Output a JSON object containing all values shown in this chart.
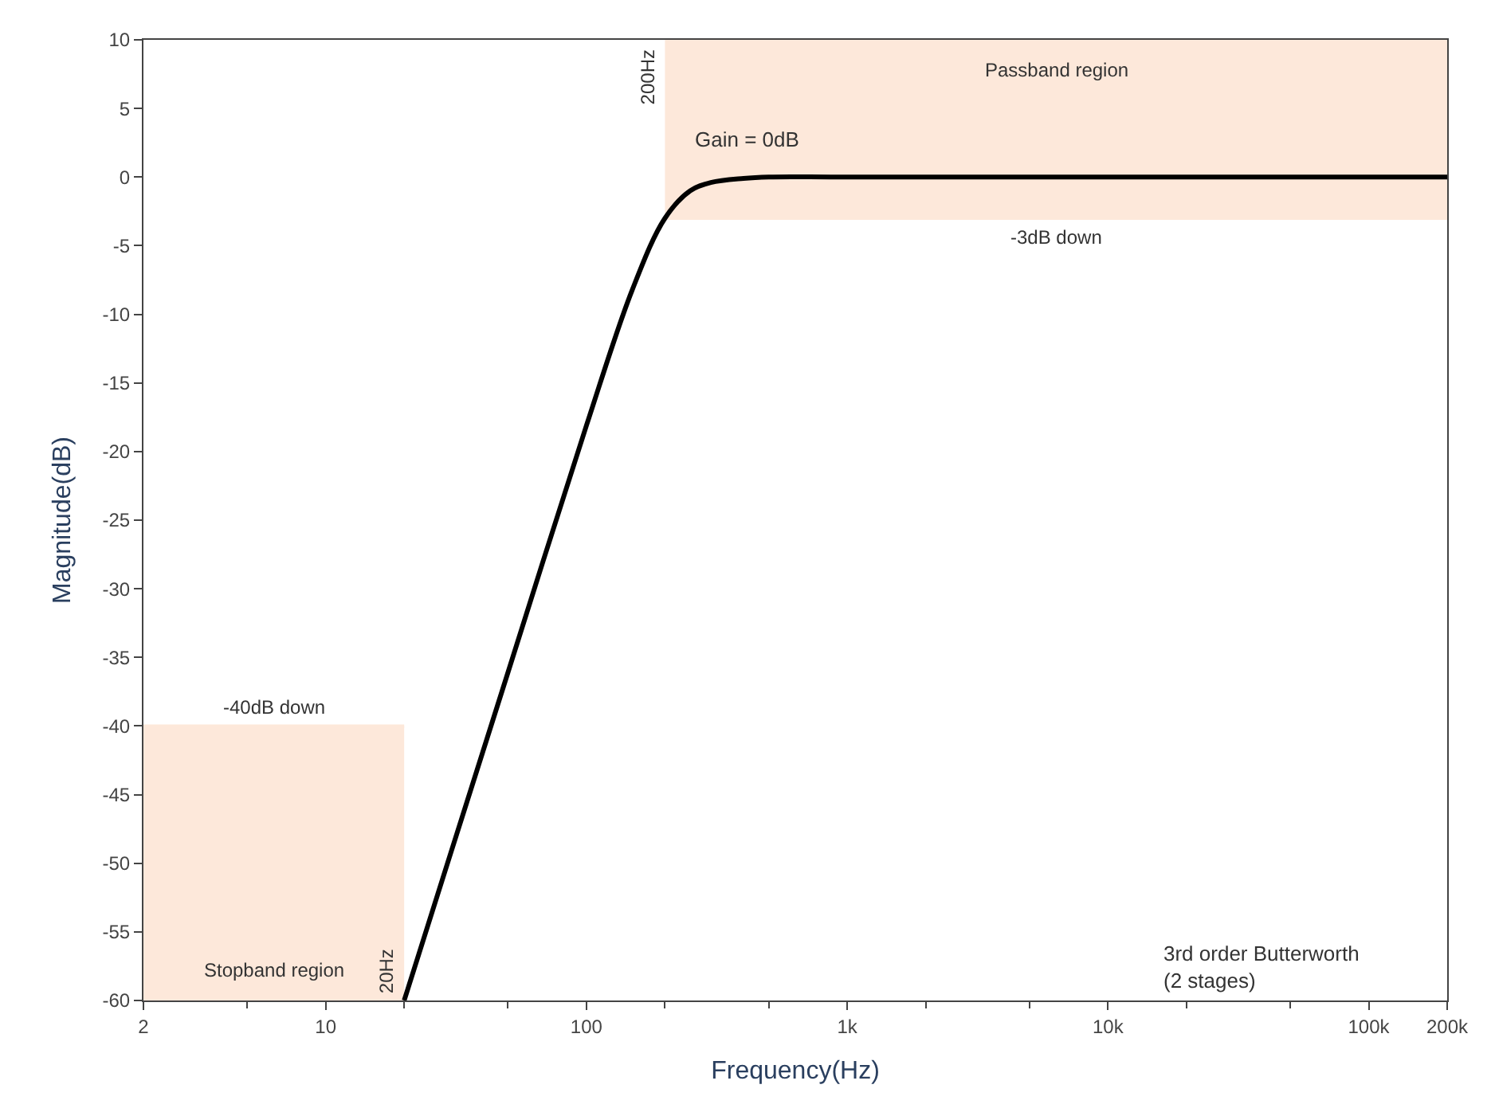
{
  "chart_data": {
    "type": "line",
    "xlabel": "Frequency(Hz)",
    "ylabel": "Magnitude(dB)",
    "log": "x",
    "x": [
      20,
      30,
      50,
      100,
      150,
      200,
      250,
      300,
      400,
      500,
      1000,
      200000
    ],
    "series": [
      {
        "color": "#000000",
        "values": [
          -60,
          -49.4,
          -36.1,
          -18.1,
          -8.2,
          -3.0,
          -1.0,
          -0.4,
          -0.1,
          0,
          0,
          0
        ]
      }
    ],
    "xlim": [
      2,
      200000
    ],
    "xticks": [
      2,
      10,
      100,
      {
        "value": 1000,
        "label": "1k"
      },
      {
        "value": 10000,
        "label": "10k"
      },
      {
        "value": 100000,
        "label": "100k"
      },
      {
        "value": 200000,
        "label": "200k"
      }
    ],
    "ylim": [
      -60,
      10
    ],
    "yticks": [
      -60,
      -55,
      -50,
      -45,
      -40,
      -35,
      -30,
      -25,
      -20,
      -15,
      -10,
      -5,
      0,
      5,
      10
    ],
    "bands": [
      {
        "axis": "x",
        "from": 200,
        "to": 200000,
        "label": "Passband region",
        "color": "#fde8da"
      },
      {
        "axis": "x",
        "from": 2,
        "to": 20,
        "label": "Stopband region",
        "color": "#fde8da"
      }
    ],
    "ref_lines": [
      {
        "axis": "y",
        "value": -3,
        "label": "-3dB down",
        "color": "#fde8da"
      },
      {
        "axis": "y",
        "value": -40,
        "label": "-40dB down",
        "color": "#fde8da"
      }
    ],
    "annotations": [
      {
        "text": "200Hz",
        "x": 200,
        "y": 10
      },
      {
        "text": "20Hz",
        "x": 20,
        "y": -60
      },
      "Gain = 0dB",
      "3rd order Butterworth\n(2 stages)"
    ],
    "grid": false,
    "marker": "none",
    "line_style": "solid"
  }
}
